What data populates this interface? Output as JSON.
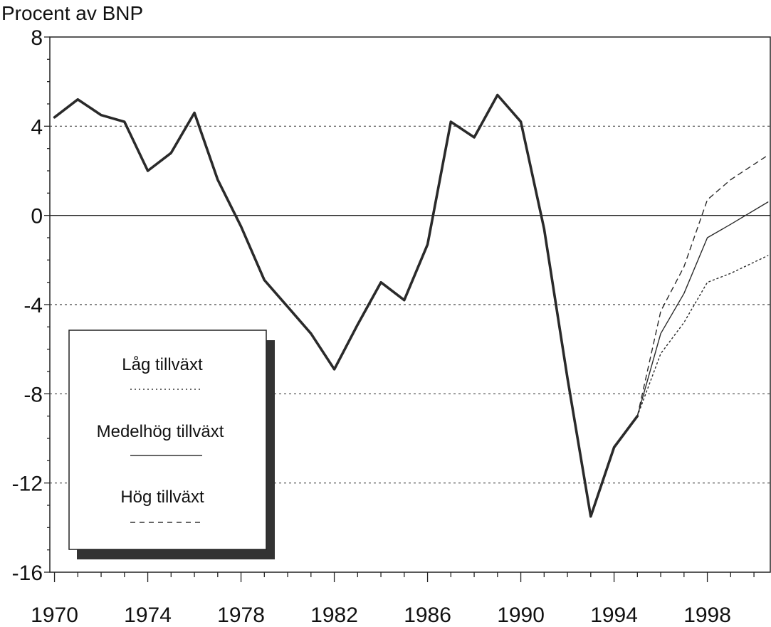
{
  "chart_data": {
    "type": "line",
    "title": "",
    "ylabel": "Procent av BNP",
    "xlabel": "",
    "xlim": [
      1969.8,
      2000.7
    ],
    "ylim": [
      -16,
      8
    ],
    "x_ticks": [
      1970,
      1974,
      1978,
      1982,
      1986,
      1990,
      1994,
      1998
    ],
    "y_ticks": [
      8,
      4,
      0,
      -4,
      -8,
      -12,
      -16
    ],
    "grid_dotted_y": [
      4,
      -4,
      -8,
      -12
    ],
    "zero_line": 0,
    "legend_position": "lower-left",
    "series": [
      {
        "name": "",
        "style": "bold",
        "x": [
          1970,
          1971,
          1972,
          1973,
          1974,
          1975,
          1976,
          1977,
          1978,
          1979,
          1980,
          1981,
          1982,
          1983,
          1984,
          1985,
          1986,
          1987,
          1988,
          1989,
          1990,
          1991,
          1992,
          1993,
          1994,
          1995
        ],
        "y": [
          4.4,
          5.2,
          4.5,
          4.2,
          2.0,
          2.8,
          4.6,
          1.6,
          -0.5,
          -2.9,
          -4.1,
          -5.3,
          -6.9,
          -4.9,
          -3.0,
          -3.8,
          -1.3,
          4.2,
          3.5,
          5.4,
          4.2,
          -0.6,
          -7.3,
          -13.5,
          -10.4,
          -9.0
        ]
      },
      {
        "name": "Låg tillväxt",
        "style": "dotted",
        "x": [
          1995,
          1996,
          1997,
          1998,
          1999,
          2000.6
        ],
        "y": [
          -9.0,
          -6.2,
          -4.8,
          -3.0,
          -2.6,
          -1.8
        ]
      },
      {
        "name": "Medelhög tillväxt",
        "style": "solid",
        "x": [
          1995,
          1996,
          1997,
          1998,
          1999,
          2000.6
        ],
        "y": [
          -9.0,
          -5.3,
          -3.5,
          -1.0,
          -0.4,
          0.6
        ]
      },
      {
        "name": "Hög tillväxt",
        "style": "dashed",
        "x": [
          1995,
          1996,
          1997,
          1998,
          1999,
          2000.6
        ],
        "y": [
          -9.0,
          -4.3,
          -2.3,
          0.7,
          1.6,
          2.7
        ]
      }
    ]
  },
  "legend": {
    "items": [
      {
        "label": "Låg tillväxt",
        "style": "dotted"
      },
      {
        "label": "Medelhög tillväxt",
        "style": "solid"
      },
      {
        "label": "Hög tillväxt",
        "style": "dashed"
      }
    ]
  },
  "colors": {
    "line": "#2a2a2a",
    "grid": "#444444",
    "shadow": "#333333"
  }
}
